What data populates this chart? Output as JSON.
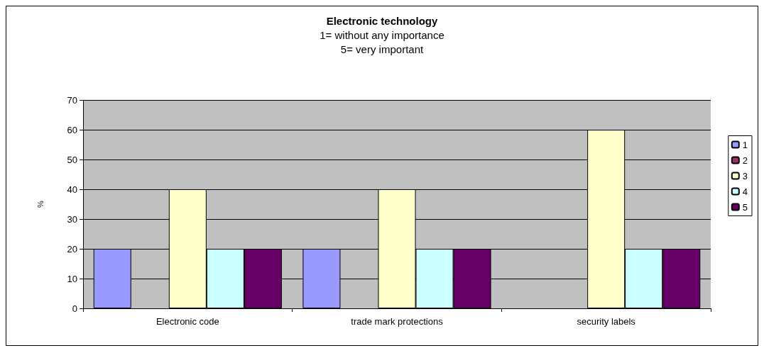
{
  "chart_data": {
    "type": "bar",
    "title": "Electronic technology",
    "subtitle": "1= without any importance\n5= very important",
    "ylabel": "%",
    "categories": [
      "Electronic code",
      "trade mark protections",
      "security labels"
    ],
    "series": [
      {
        "name": "1",
        "color": "#9999ff",
        "values": [
          20,
          20,
          0
        ]
      },
      {
        "name": "2",
        "color": "#993366",
        "values": [
          0,
          0,
          0
        ]
      },
      {
        "name": "3",
        "color": "#ffffcc",
        "values": [
          40,
          40,
          60
        ]
      },
      {
        "name": "4",
        "color": "#ccffff",
        "values": [
          20,
          20,
          20
        ]
      },
      {
        "name": "5",
        "color": "#660066",
        "values": [
          20,
          20,
          20
        ]
      }
    ],
    "ylim": [
      0,
      70
    ],
    "yticks": [
      0,
      10,
      20,
      30,
      40,
      50,
      60,
      70
    ],
    "grid": "y",
    "legend": "right"
  }
}
